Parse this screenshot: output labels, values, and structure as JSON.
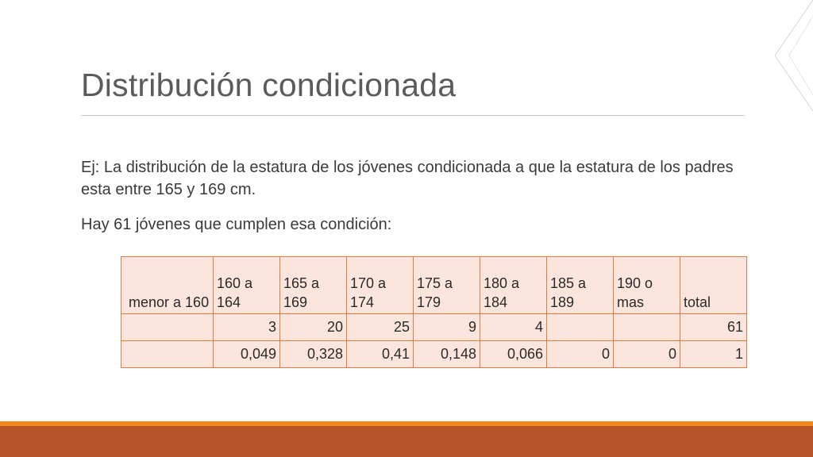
{
  "slide": {
    "title": "Distribución condicionada",
    "paragraph1": "Ej: La distribución de la estatura de los jóvenes condicionada  a que la estatura de los padres esta entre 165 y 169 cm.",
    "paragraph2": "Hay 61 jóvenes que cumplen esa condición:"
  },
  "table": {
    "headers": [
      " menor a 160",
      "160 a 164",
      "165 a 169",
      "170 a 174",
      "175 a 179",
      "180 a 184",
      "185 a 189",
      "190 o mas",
      "total"
    ],
    "counts": [
      "",
      "3",
      "20",
      "25",
      "9",
      "4",
      "",
      "",
      "61"
    ],
    "frequencies": [
      "",
      "0,049",
      "0,328",
      "0,41",
      "0,148",
      "0,066",
      "0",
      "0",
      "1"
    ]
  },
  "colors": {
    "accent_orange": "#f08a1d",
    "bar_brown": "#b8542a",
    "table_border": "#e07a3e",
    "table_fill": "#fbe5dc"
  }
}
